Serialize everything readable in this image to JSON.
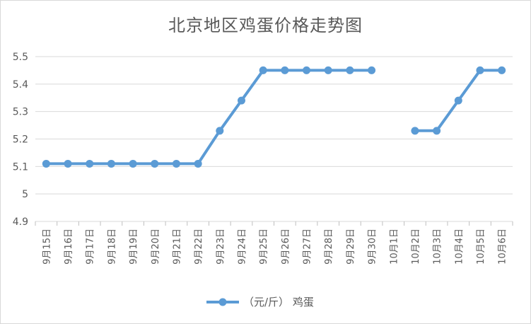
{
  "chart_data": {
    "type": "line",
    "title": "北京地区鸡蛋价格走势图",
    "xlabel": "",
    "ylabel": "",
    "categories": [
      "9月15日",
      "9月16日",
      "9月17日",
      "9月18日",
      "9月19日",
      "9月20日",
      "9月21日",
      "9月22日",
      "9月23日",
      "9月24日",
      "9月25日",
      "9月26日",
      "9月27日",
      "9月28日",
      "9月29日",
      "9月30日",
      "10月1日",
      "10月2日",
      "10月3日",
      "10月4日",
      "10月5日",
      "10月6日"
    ],
    "series": [
      {
        "name": "（元/斤） 鸡蛋",
        "color": "#5b9bd5",
        "values": [
          5.11,
          5.11,
          5.11,
          5.11,
          5.11,
          5.11,
          5.11,
          5.11,
          5.23,
          5.34,
          5.45,
          5.45,
          5.45,
          5.45,
          5.45,
          5.45,
          null,
          5.23,
          5.23,
          5.34,
          5.45,
          5.45
        ]
      }
    ],
    "ylim": [
      4.9,
      5.5
    ],
    "yticks": [
      "4.9",
      "5",
      "5.1",
      "5.2",
      "5.3",
      "5.4",
      "5.5"
    ],
    "grid": true,
    "legend_position": "bottom"
  }
}
